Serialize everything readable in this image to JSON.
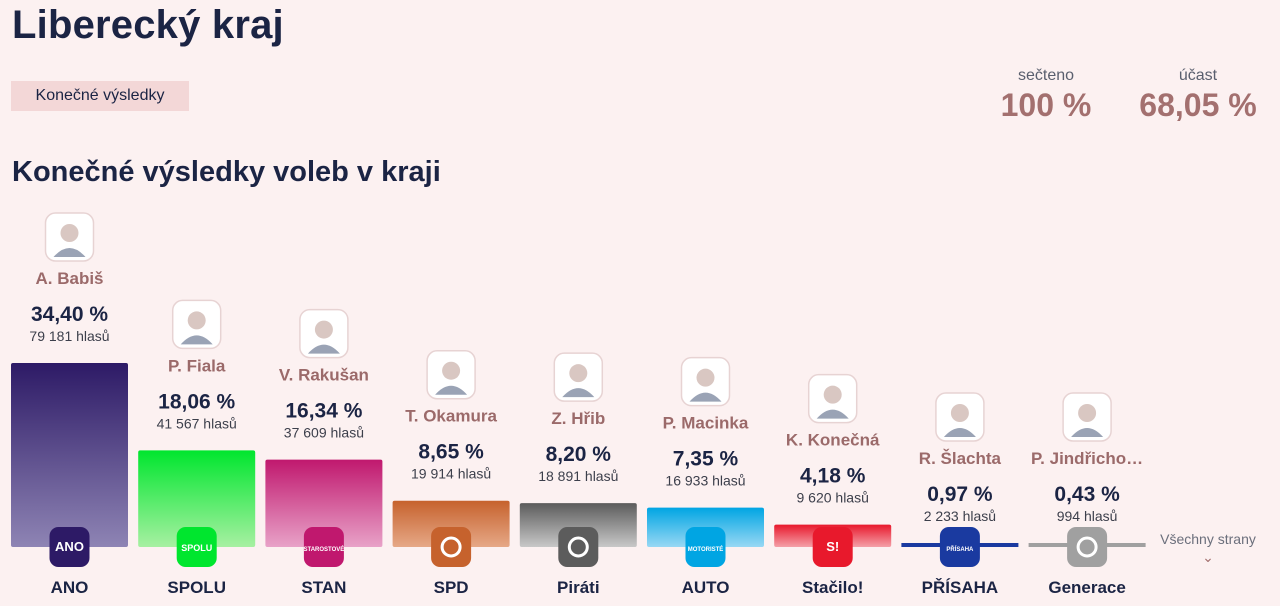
{
  "header": {
    "region": "Liberecký kraj",
    "status": "Konečné výsledky",
    "counted_label": "sečteno",
    "counted_value": "100 %",
    "turnout_label": "účast",
    "turnout_value": "68,05 %"
  },
  "section_title": "Konečné výsledky voleb v kraji",
  "all_parties_label": "Všechny strany",
  "chart_data": {
    "type": "bar",
    "title": "Konečné výsledky voleb v kraji",
    "xlabel": "",
    "ylabel": "",
    "ylim": [
      0,
      34.4
    ],
    "grid": false,
    "legend": "none",
    "categories": [
      "ANO",
      "SPOLU",
      "STAN",
      "SPD",
      "Piráti",
      "AUTO",
      "Stačilo!",
      "PŘÍSAHA",
      "Generace"
    ],
    "values": [
      34.4,
      18.06,
      16.34,
      8.65,
      8.2,
      7.35,
      4.18,
      0.97,
      0.43
    ],
    "percent_labels": [
      "34,40 %",
      "18,06 %",
      "16,34 %",
      "8,65 %",
      "8,20 %",
      "7,35 %",
      "4,18 %",
      "0,97 %",
      "0,43 %"
    ],
    "votes_labels": [
      "79 181 hlasů",
      "41 567 hlasů",
      "37 609 hlasů",
      "19 914 hlasů",
      "18 891 hlasů",
      "16 933 hlasů",
      "9 620 hlasů",
      "2 233 hlasů",
      "994 hlasů"
    ],
    "leaders": [
      "A. Babiš",
      "P. Fiala",
      "V. Rakušan",
      "T. Okamura",
      "Z. Hřib",
      "P. Macinka",
      "K. Konečná",
      "R. Šlachta",
      "P. Jindřicho…"
    ],
    "logo_texts": [
      "ANO",
      "SPOLU",
      "STAROSTOVÉ",
      "",
      "",
      "MOTORISTÉ",
      "S!",
      "PŘÍSAHA",
      ""
    ],
    "colors": [
      [
        "#2d1a66",
        "#8e84b4"
      ],
      [
        "#00e62e",
        "#a7f0a2"
      ],
      [
        "#c0186e",
        "#e8a2c8"
      ],
      [
        "#c6622d",
        "#e6a887"
      ],
      [
        "#5c5c5c",
        "#c8c8c8"
      ],
      [
        "#00a5e3",
        "#98d8f4"
      ],
      [
        "#e8192c",
        "#f4a0a8"
      ],
      [
        "#1a3aa0",
        "#7a93d8"
      ],
      [
        "#a0a0a0",
        "#dcdcdc"
      ]
    ]
  }
}
